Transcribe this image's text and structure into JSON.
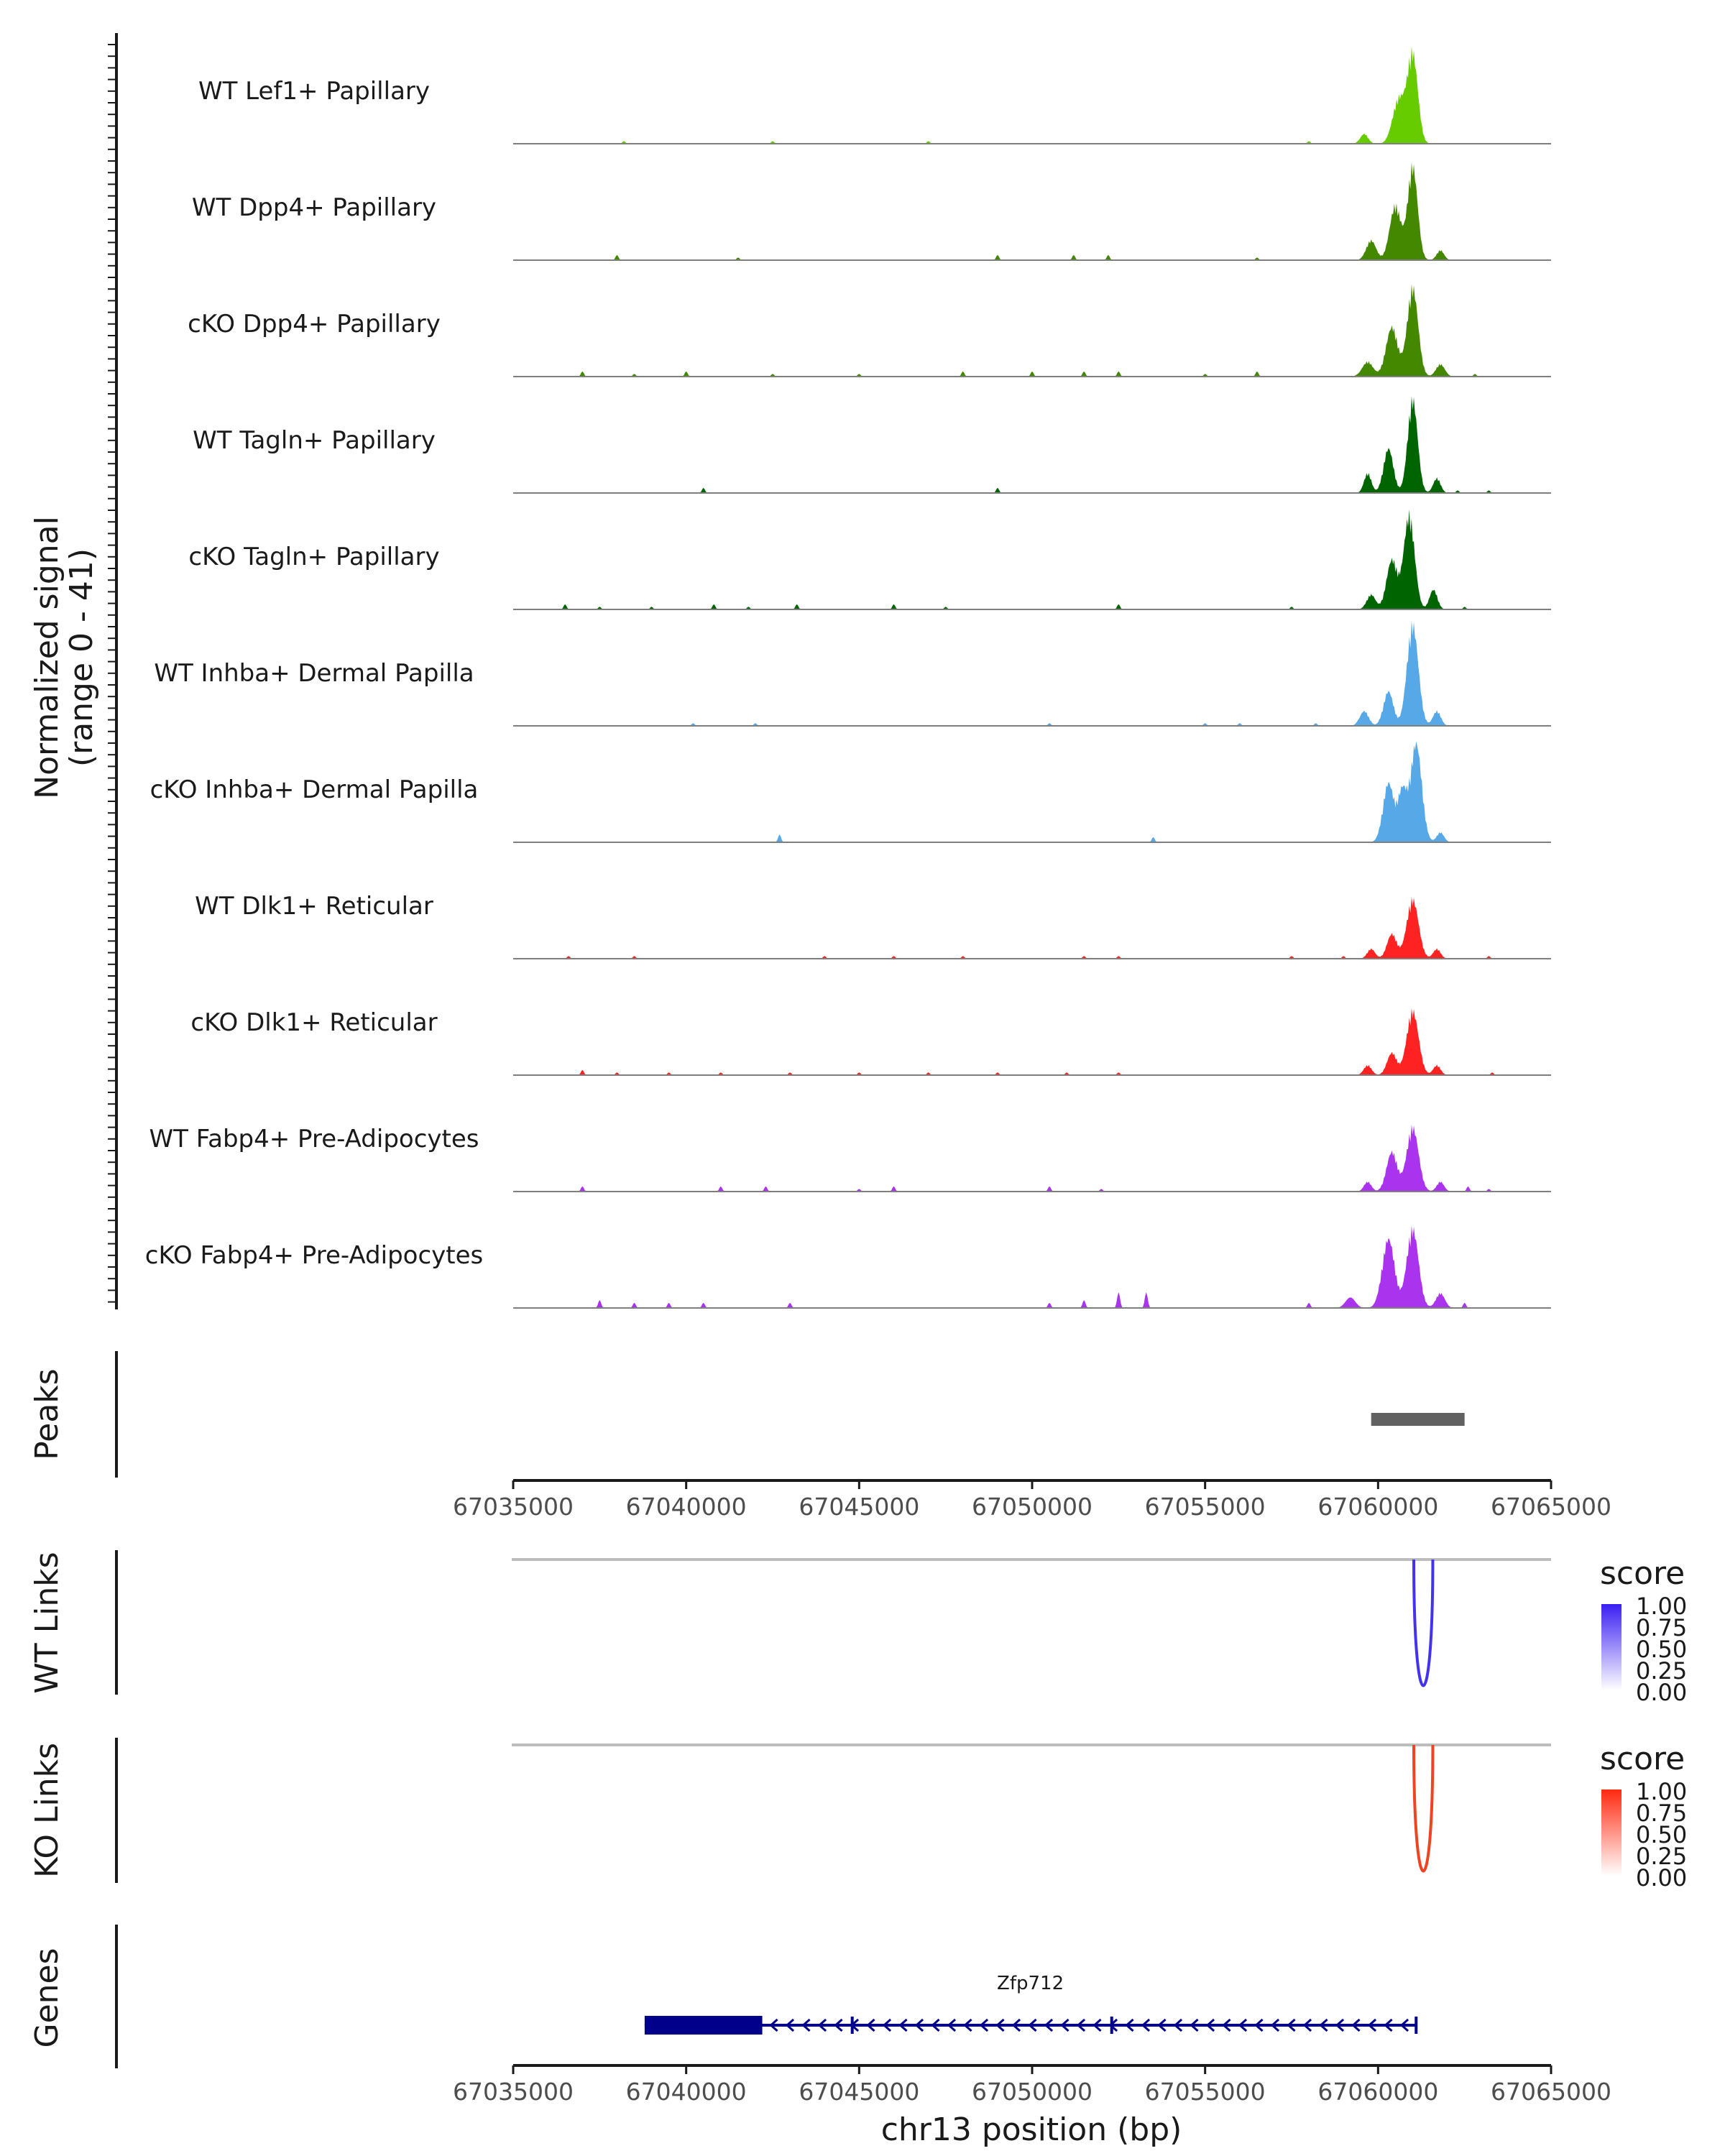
{
  "chart_data": {
    "type": "area",
    "title": "",
    "ylabel_line1": "Normalized signal",
    "ylabel_line2": "(range 0 - 41)",
    "ylim": [
      0,
      41
    ],
    "xlabel": "chr13 position (bp)",
    "xlim": [
      67035000,
      67065000
    ],
    "xticks": [
      67035000,
      67040000,
      67045000,
      67050000,
      67055000,
      67060000,
      67065000
    ],
    "xtick_labels": [
      "67035000",
      "67040000",
      "67045000",
      "67050000",
      "67055000",
      "67060000",
      "67065000"
    ],
    "peak_region": [
      67061000,
      67061900
    ],
    "tracks": [
      {
        "name": "WT Lef1+ Papillary",
        "color": "#66cc00",
        "peaks": [
          [
            67060600,
            18,
            250
          ],
          [
            67061000,
            36,
            210
          ],
          [
            67059600,
            4,
            160
          ]
        ],
        "noise": [
          [
            67038200,
            1
          ],
          [
            67042500,
            1
          ],
          [
            67047000,
            1
          ],
          [
            67058000,
            1
          ]
        ]
      },
      {
        "name": "WT Dpp4+ Papillary",
        "color": "#448800",
        "peaks": [
          [
            67059800,
            8,
            200
          ],
          [
            67060500,
            22,
            230
          ],
          [
            67061000,
            38,
            200
          ],
          [
            67061800,
            4,
            150
          ]
        ],
        "noise": [
          [
            67038000,
            2
          ],
          [
            67041500,
            1
          ],
          [
            67049000,
            2
          ],
          [
            67051200,
            2
          ],
          [
            67052200,
            2
          ],
          [
            67056500,
            1
          ]
        ]
      },
      {
        "name": "cKO Dpp4+ Papillary",
        "color": "#448800",
        "peaks": [
          [
            67059700,
            6,
            220
          ],
          [
            67060400,
            20,
            240
          ],
          [
            67061000,
            36,
            220
          ],
          [
            67061800,
            5,
            180
          ]
        ],
        "noise": [
          [
            67037000,
            2
          ],
          [
            67038500,
            1
          ],
          [
            67040000,
            2
          ],
          [
            67042500,
            1
          ],
          [
            67045000,
            1
          ],
          [
            67048000,
            2
          ],
          [
            67050000,
            2
          ],
          [
            67051500,
            2
          ],
          [
            67052500,
            2
          ],
          [
            67055000,
            1
          ],
          [
            67056500,
            2
          ],
          [
            67062800,
            1
          ]
        ]
      },
      {
        "name": "WT Tagln+ Papillary",
        "color": "#006400",
        "peaks": [
          [
            67059700,
            8,
            150
          ],
          [
            67060300,
            18,
            200
          ],
          [
            67061000,
            38,
            200
          ],
          [
            67061700,
            6,
            150
          ]
        ],
        "noise": [
          [
            67040500,
            2
          ],
          [
            67049000,
            2
          ],
          [
            67062300,
            1
          ],
          [
            67063200,
            1
          ]
        ]
      },
      {
        "name": "cKO Tagln+ Papillary",
        "color": "#006400",
        "peaks": [
          [
            67059800,
            6,
            180
          ],
          [
            67060400,
            20,
            220
          ],
          [
            67060900,
            38,
            220
          ],
          [
            67061600,
            8,
            160
          ]
        ],
        "noise": [
          [
            67036500,
            2
          ],
          [
            67037500,
            1
          ],
          [
            67039000,
            1
          ],
          [
            67040800,
            2
          ],
          [
            67041800,
            1
          ],
          [
            67043200,
            2
          ],
          [
            67046000,
            2
          ],
          [
            67047500,
            1
          ],
          [
            67052500,
            2
          ],
          [
            67057500,
            1
          ],
          [
            67062500,
            1
          ]
        ]
      },
      {
        "name": "WT Inhba+ Dermal Papilla",
        "color": "#56a8e6",
        "peaks": [
          [
            67059600,
            6,
            180
          ],
          [
            67060300,
            14,
            200
          ],
          [
            67061000,
            41,
            230
          ],
          [
            67061700,
            6,
            160
          ]
        ],
        "noise": [
          [
            67040200,
            1
          ],
          [
            67042000,
            1
          ],
          [
            67050500,
            1
          ],
          [
            67055000,
            1
          ],
          [
            67056000,
            1
          ],
          [
            67058200,
            1
          ]
        ]
      },
      {
        "name": "cKO Inhba+ Dermal Papilla",
        "color": "#56a8e6",
        "peaks": [
          [
            67060300,
            24,
            220
          ],
          [
            67060700,
            20,
            180
          ],
          [
            67061100,
            40,
            230
          ],
          [
            67061800,
            4,
            150
          ]
        ],
        "noise": [
          [
            67042700,
            3
          ],
          [
            67053500,
            2
          ]
        ]
      },
      {
        "name": "WT Dlk1+ Reticular",
        "color": "#ff2222",
        "peaks": [
          [
            67059800,
            4,
            160
          ],
          [
            67060400,
            10,
            200
          ],
          [
            67061000,
            24,
            240
          ],
          [
            67061700,
            4,
            150
          ]
        ],
        "noise": [
          [
            67036600,
            1
          ],
          [
            67038500,
            1
          ],
          [
            67044000,
            1
          ],
          [
            67046000,
            1
          ],
          [
            67048000,
            1
          ],
          [
            67051500,
            1
          ],
          [
            67052500,
            1
          ],
          [
            67057500,
            1
          ],
          [
            67059000,
            1
          ],
          [
            67063200,
            1
          ]
        ]
      },
      {
        "name": "cKO Dlk1+ Reticular",
        "color": "#ff2222",
        "peaks": [
          [
            67059700,
            4,
            160
          ],
          [
            67060400,
            9,
            200
          ],
          [
            67061000,
            26,
            240
          ],
          [
            67061700,
            4,
            150
          ]
        ],
        "noise": [
          [
            67037000,
            2
          ],
          [
            67038000,
            1
          ],
          [
            67039500,
            1
          ],
          [
            67041000,
            1
          ],
          [
            67043000,
            1
          ],
          [
            67045000,
            1
          ],
          [
            67047000,
            1
          ],
          [
            67049000,
            1
          ],
          [
            67051000,
            1
          ],
          [
            67052500,
            1
          ],
          [
            67063300,
            1
          ]
        ]
      },
      {
        "name": "WT Fabp4+ Pre-Adipocytes",
        "color": "#aa33ee",
        "peaks": [
          [
            67059700,
            4,
            150
          ],
          [
            67060400,
            16,
            220
          ],
          [
            67061000,
            26,
            240
          ],
          [
            67061800,
            4,
            150
          ]
        ],
        "noise": [
          [
            67037000,
            2
          ],
          [
            67041000,
            2
          ],
          [
            67042300,
            2
          ],
          [
            67045000,
            1
          ],
          [
            67046000,
            2
          ],
          [
            67050500,
            2
          ],
          [
            67052000,
            1
          ],
          [
            67062600,
            2
          ],
          [
            67063200,
            1
          ]
        ]
      },
      {
        "name": "cKO Fabp4+ Pre-Adipocytes",
        "color": "#aa33ee",
        "peaks": [
          [
            67060300,
            28,
            250
          ],
          [
            67061000,
            32,
            240
          ],
          [
            67061800,
            6,
            180
          ],
          [
            67059200,
            4,
            200
          ]
        ],
        "noise": [
          [
            67037500,
            3
          ],
          [
            67038500,
            2
          ],
          [
            67039500,
            2
          ],
          [
            67040500,
            2
          ],
          [
            67043000,
            2
          ],
          [
            67050500,
            2
          ],
          [
            67051500,
            3
          ],
          [
            67052500,
            6
          ],
          [
            67053300,
            6
          ],
          [
            67058000,
            2
          ],
          [
            67062500,
            2
          ]
        ]
      }
    ],
    "panels": {
      "peaks_label": "Peaks",
      "wt_links_label": "WT Links",
      "ko_links_label": "KO Links",
      "genes_label": "Genes"
    },
    "links": {
      "wt": {
        "start": 67060700,
        "end": 67061000,
        "score": 1.0,
        "color": "#4433ee"
      },
      "ko": {
        "start": 67060700,
        "end": 67061000,
        "score": 1.0,
        "color": "#ee4422"
      }
    },
    "legends": [
      {
        "title": "score",
        "labels": [
          "1.00",
          "0.75",
          "0.50",
          "0.25",
          "0.00"
        ],
        "color_high": "#3a1ff2",
        "color_low": "#ffffff"
      },
      {
        "title": "score",
        "labels": [
          "1.00",
          "0.75",
          "0.50",
          "0.25",
          "0.00"
        ],
        "color_high": "#ff2a10",
        "color_low": "#ffffff"
      }
    ],
    "gene": {
      "name": "Zfp712",
      "start": 67038800,
      "end": 67061100,
      "exon_start": 67038800,
      "exon_end": 67042200,
      "strand": "-",
      "color": "#00008b"
    }
  }
}
